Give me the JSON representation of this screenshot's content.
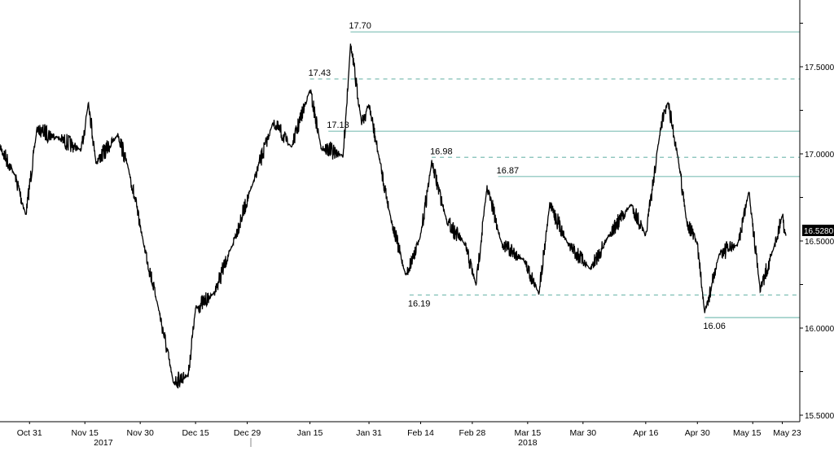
{
  "chart_data": {
    "type": "line",
    "title": "",
    "xlabel": "",
    "ylabel": "",
    "ylim": [
      15.42,
      17.88
    ],
    "grid": false,
    "y_axis_side": "right",
    "y_ticks": [
      "15.5000",
      "16.0000",
      "16.5000",
      "17.0000",
      "17.5000"
    ],
    "y_tick_values": [
      15.5,
      16.0,
      16.5,
      17.0,
      17.5
    ],
    "x_ticks": [
      {
        "label": "Oct 31",
        "date": "2017-10-31"
      },
      {
        "label": "Nov 15",
        "date": "2017-11-15"
      },
      {
        "label": "Nov 30",
        "date": "2017-11-30"
      },
      {
        "label": "Dec 15",
        "date": "2017-12-15"
      },
      {
        "label": "Dec 29",
        "date": "2017-12-29"
      },
      {
        "label": "Jan 15",
        "date": "2018-01-15"
      },
      {
        "label": "Jan 31",
        "date": "2018-01-31"
      },
      {
        "label": "Feb 14",
        "date": "2018-02-14"
      },
      {
        "label": "Feb 28",
        "date": "2018-02-28"
      },
      {
        "label": "Mar 15",
        "date": "2018-03-15"
      },
      {
        "label": "Mar 30",
        "date": "2018-03-30"
      },
      {
        "label": "Apr 16",
        "date": "2018-04-16"
      },
      {
        "label": "Apr 30",
        "date": "2018-04-30"
      },
      {
        "label": "May 15",
        "date": "2018-05-15"
      },
      {
        "label": "May 23",
        "date": "2018-05-23"
      }
    ],
    "year_labels": [
      {
        "label": "2017",
        "date": "2017-11-20"
      },
      {
        "label": "2018",
        "date": "2018-03-15"
      }
    ],
    "last_price": "16.5280",
    "line_color": "#000000",
    "level_color": "#7fbfb5",
    "levels": [
      {
        "label": "17.70",
        "value": 17.7,
        "style": "solid",
        "from": "2018-01-26"
      },
      {
        "label": "17.43",
        "value": 17.43,
        "style": "dashed",
        "from": "2018-01-15"
      },
      {
        "label": "17.13",
        "value": 17.13,
        "style": "solid",
        "from": "2018-01-20"
      },
      {
        "label": "16.98",
        "value": 16.98,
        "style": "dashed",
        "from": "2018-02-17"
      },
      {
        "label": "16.87",
        "value": 16.87,
        "style": "solid",
        "from": "2018-03-07"
      },
      {
        "label": "16.19",
        "value": 16.19,
        "style": "dashed",
        "from": "2018-02-11"
      },
      {
        "label": "16.06",
        "value": 16.06,
        "style": "solid",
        "from": "2018-05-02"
      }
    ],
    "series": [
      {
        "points": [
          [
            "2017-10-23",
            17.04
          ],
          [
            "2017-10-27",
            16.88
          ],
          [
            "2017-10-30",
            16.65
          ],
          [
            "2017-11-02",
            17.14
          ],
          [
            "2017-11-08",
            17.09
          ],
          [
            "2017-11-14",
            17.02
          ],
          [
            "2017-11-16",
            17.3
          ],
          [
            "2017-11-18",
            16.95
          ],
          [
            "2017-11-24",
            17.11
          ],
          [
            "2017-11-27",
            16.9
          ],
          [
            "2017-12-01",
            16.48
          ],
          [
            "2017-12-05",
            16.11
          ],
          [
            "2017-12-09",
            15.69
          ],
          [
            "2017-12-13",
            15.73
          ],
          [
            "2017-12-15",
            16.11
          ],
          [
            "2017-12-20",
            16.2
          ],
          [
            "2017-12-25",
            16.48
          ],
          [
            "2017-12-31",
            16.86
          ],
          [
            "2018-01-05",
            17.18
          ],
          [
            "2018-01-10",
            17.04
          ],
          [
            "2018-01-15",
            17.37
          ],
          [
            "2018-01-18",
            17.04
          ],
          [
            "2018-01-24",
            16.99
          ],
          [
            "2018-01-26",
            17.63
          ],
          [
            "2018-01-29",
            17.18
          ],
          [
            "2018-01-31",
            17.28
          ],
          [
            "2018-02-03",
            16.95
          ],
          [
            "2018-02-06",
            16.62
          ],
          [
            "2018-02-10",
            16.3
          ],
          [
            "2018-02-14",
            16.53
          ],
          [
            "2018-02-17",
            16.95
          ],
          [
            "2018-02-21",
            16.62
          ],
          [
            "2018-02-26",
            16.48
          ],
          [
            "2018-03-01",
            16.25
          ],
          [
            "2018-03-04",
            16.81
          ],
          [
            "2018-03-08",
            16.48
          ],
          [
            "2018-03-14",
            16.39
          ],
          [
            "2018-03-18",
            16.2
          ],
          [
            "2018-03-21",
            16.71
          ],
          [
            "2018-03-26",
            16.48
          ],
          [
            "2018-04-01",
            16.34
          ],
          [
            "2018-04-06",
            16.53
          ],
          [
            "2018-04-12",
            16.71
          ],
          [
            "2018-04-16",
            16.53
          ],
          [
            "2018-04-20",
            17.14
          ],
          [
            "2018-04-22",
            17.3
          ],
          [
            "2018-04-25",
            16.95
          ],
          [
            "2018-04-27",
            16.62
          ],
          [
            "2018-04-30",
            16.48
          ],
          [
            "2018-05-02",
            16.08
          ],
          [
            "2018-05-06",
            16.43
          ],
          [
            "2018-05-11",
            16.48
          ],
          [
            "2018-05-14",
            16.79
          ],
          [
            "2018-05-17",
            16.22
          ],
          [
            "2018-05-21",
            16.48
          ],
          [
            "2018-05-23",
            16.65
          ],
          [
            "2018-05-24",
            16.53
          ]
        ]
      }
    ]
  }
}
